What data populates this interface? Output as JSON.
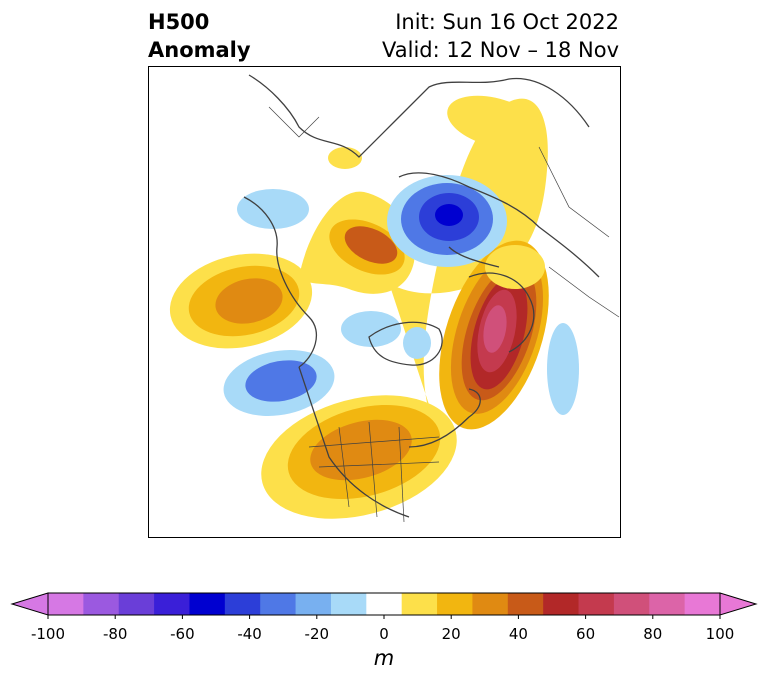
{
  "header": {
    "title_line1": "H500",
    "title_line2": "Anomaly",
    "init_text": "Init: Sun 16 Oct 2022",
    "valid_text": "Valid: 12 Nov – 18 Nov"
  },
  "map": {
    "projection": "north-polar-stereographic",
    "field": "500 hPa geopotential height anomaly",
    "features": [
      {
        "name": "positive-anomaly-north-atlantic",
        "sign": "positive",
        "peak_m": 80
      },
      {
        "name": "negative-anomaly-western-siberia",
        "sign": "negative",
        "peak_m": -70
      },
      {
        "name": "positive-anomaly-scandinavia-barents",
        "sign": "positive",
        "peak_m": 50
      },
      {
        "name": "positive-anomaly-north-pacific",
        "sign": "positive",
        "peak_m": 30
      },
      {
        "name": "negative-anomaly-gulf-of-alaska",
        "sign": "negative",
        "peak_m": -40
      },
      {
        "name": "positive-anomaly-central-us",
        "sign": "positive",
        "peak_m": 40
      },
      {
        "name": "positive-anomaly-northern-russia",
        "sign": "positive",
        "peak_m": 20
      },
      {
        "name": "negative-anomaly-arctic-canada",
        "sign": "negative",
        "peak_m": -20
      }
    ]
  },
  "colorbar": {
    "unit": "m",
    "ticks": [
      "-100",
      "-80",
      "-60",
      "-40",
      "-20",
      "0",
      "20",
      "40",
      "60",
      "80",
      "100"
    ],
    "levels": [
      -100,
      -90,
      -80,
      -70,
      -60,
      -50,
      -40,
      -30,
      -20,
      -10,
      10,
      20,
      30,
      40,
      50,
      60,
      70,
      80,
      90,
      100
    ],
    "colors": [
      "#d678e4",
      "#9b59e0",
      "#6a3ed8",
      "#3a1fd8",
      "#0000d0",
      "#2c3ed8",
      "#4f78e6",
      "#78b0f0",
      "#a8daf8",
      "#ffffff",
      "#fde04a",
      "#f2b610",
      "#e08a12",
      "#c85a18",
      "#b22828",
      "#c43a4e",
      "#d0507a",
      "#dc64a8",
      "#e878d6"
    ],
    "extend_low_color": "#d678e4",
    "extend_high_color": "#e878d6"
  }
}
